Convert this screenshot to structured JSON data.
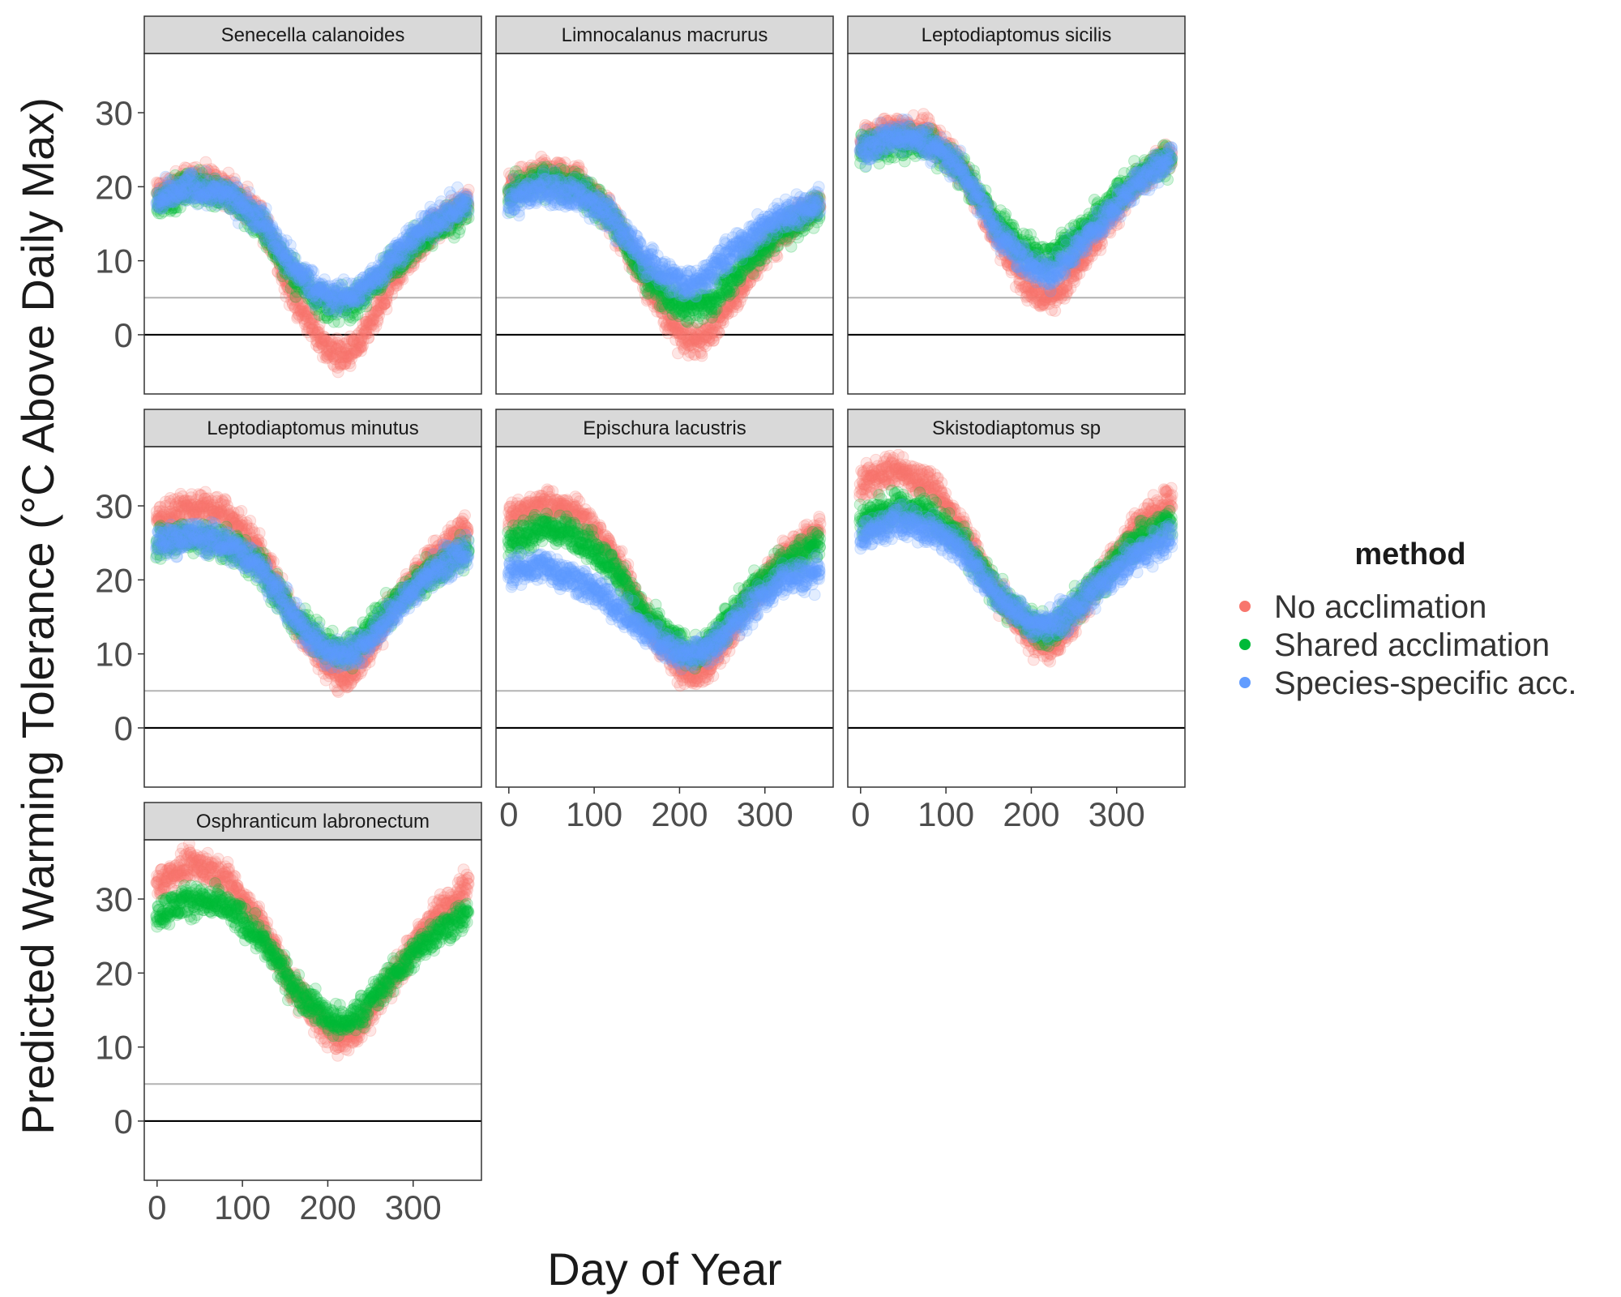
{
  "chart_data": {
    "type": "scatter",
    "xlabel": "Day of Year",
    "ylabel": "Predicted Warming Tolerance (°C Above Daily Max)",
    "xlim": [
      -15,
      380
    ],
    "ylim": [
      -8,
      38
    ],
    "x_ticks": [
      0,
      100,
      200,
      300
    ],
    "y_ticks": [
      0,
      10,
      20,
      30
    ],
    "reference_lines": [
      {
        "y": 0,
        "color": "#000000"
      },
      {
        "y": 5,
        "color": "#b3b3b3"
      }
    ],
    "grid": false,
    "legend": {
      "title": "method",
      "position": "right",
      "entries": [
        {
          "label": "No acclimation",
          "color": "#F8766D"
        },
        {
          "label": "Shared acclimation",
          "color": "#00BA38"
        },
        {
          "label": "Species-specific acc.",
          "color": "#619CFF"
        }
      ]
    },
    "facets": [
      {
        "name": "Senecella calanoides",
        "series": [
          {
            "method": "No acclimation",
            "x": [
              0,
              40,
              80,
              120,
              160,
              200,
              220,
              240,
              280,
              320,
              365
            ],
            "y": [
              19,
              21,
              20,
              16,
              5,
              -2,
              -3,
              -1,
              8,
              14,
              18
            ]
          },
          {
            "method": "Shared acclimation",
            "x": [
              0,
              40,
              80,
              120,
              160,
              200,
              220,
              240,
              280,
              320,
              365
            ],
            "y": [
              18,
              20,
              19,
              15,
              8,
              4,
              4,
              5,
              10,
              14,
              17
            ]
          },
          {
            "method": "Species-specific acc.",
            "x": [
              0,
              40,
              80,
              120,
              160,
              200,
              220,
              240,
              280,
              320,
              365
            ],
            "y": [
              18,
              20,
              19,
              16,
              9,
              5,
              5,
              6,
              11,
              15,
              18
            ]
          }
        ]
      },
      {
        "name": "Limnocalanus macrurus",
        "series": [
          {
            "method": "No acclimation",
            "x": [
              0,
              40,
              80,
              120,
              160,
              200,
              220,
              240,
              280,
              320,
              365
            ],
            "y": [
              20,
              22,
              21,
              16,
              7,
              0,
              -1,
              1,
              8,
              14,
              18
            ]
          },
          {
            "method": "Shared acclimation",
            "x": [
              0,
              40,
              80,
              120,
              160,
              200,
              220,
              240,
              280,
              320,
              365
            ],
            "y": [
              19,
              21,
              20,
              16,
              8,
              4,
              4,
              5,
              10,
              14,
              17
            ]
          },
          {
            "method": "Species-specific acc.",
            "x": [
              0,
              40,
              80,
              120,
              160,
              200,
              220,
              240,
              280,
              320,
              365
            ],
            "y": [
              18,
              20,
              19,
              16,
              10,
              7,
              7,
              9,
              13,
              16,
              18
            ]
          }
        ]
      },
      {
        "name": "Leptodiaptomus sicilis",
        "series": [
          {
            "method": "No acclimation",
            "x": [
              0,
              40,
              80,
              120,
              160,
              200,
              220,
              240,
              280,
              320,
              365
            ],
            "y": [
              26,
              28,
              27,
              22,
              13,
              6,
              5,
              7,
              14,
              20,
              25
            ]
          },
          {
            "method": "Shared acclimation",
            "x": [
              0,
              40,
              80,
              120,
              160,
              200,
              220,
              240,
              280,
              320,
              365
            ],
            "y": [
              25,
              26,
              26,
              22,
              15,
              11,
              10,
              12,
              16,
              21,
              24
            ]
          },
          {
            "method": "Species-specific acc.",
            "x": [
              0,
              40,
              80,
              120,
              160,
              200,
              220,
              240,
              280,
              320,
              365
            ],
            "y": [
              25,
              27,
              26,
              22,
              14,
              9,
              8,
              10,
              15,
              20,
              24
            ]
          }
        ]
      },
      {
        "name": "Leptodiaptomus minutus",
        "series": [
          {
            "method": "No acclimation",
            "x": [
              0,
              40,
              80,
              120,
              160,
              200,
              220,
              240,
              280,
              320,
              365
            ],
            "y": [
              28,
              30,
              29,
              24,
              15,
              8,
              7,
              9,
              17,
              23,
              27
            ]
          },
          {
            "method": "Shared acclimation",
            "x": [
              0,
              40,
              80,
              120,
              160,
              200,
              220,
              240,
              280,
              320,
              365
            ],
            "y": [
              25,
              26,
              25,
              22,
              15,
              11,
              10,
              12,
              17,
              21,
              24
            ]
          },
          {
            "method": "Species-specific acc.",
            "x": [
              0,
              40,
              80,
              120,
              160,
              200,
              220,
              240,
              280,
              320,
              365
            ],
            "y": [
              25,
              26,
              25,
              22,
              15,
              10,
              10,
              11,
              16,
              21,
              24
            ]
          }
        ]
      },
      {
        "name": "Epischura lacustris",
        "series": [
          {
            "method": "No acclimation",
            "x": [
              0,
              40,
              80,
              120,
              160,
              200,
              220,
              240,
              280,
              320,
              365
            ],
            "y": [
              28,
              30,
              29,
              24,
              15,
              8,
              7,
              9,
              17,
              23,
              27
            ]
          },
          {
            "method": "Shared acclimation",
            "x": [
              0,
              40,
              80,
              120,
              160,
              200,
              220,
              240,
              280,
              320,
              365
            ],
            "y": [
              25,
              27,
              26,
              22,
              15,
              11,
              10,
              12,
              18,
              22,
              25
            ]
          },
          {
            "method": "Species-specific acc.",
            "x": [
              0,
              40,
              80,
              120,
              160,
              200,
              220,
              240,
              280,
              320,
              365
            ],
            "y": [
              21,
              22,
              20,
              17,
              13,
              10,
              10,
              11,
              16,
              20,
              21
            ]
          }
        ]
      },
      {
        "name": "Skistodiaptomus sp",
        "series": [
          {
            "method": "No acclimation",
            "x": [
              0,
              40,
              80,
              120,
              160,
              200,
              220,
              240,
              280,
              320,
              365
            ],
            "y": [
              33,
              35,
              33,
              27,
              18,
              12,
              11,
              13,
              20,
              27,
              31
            ]
          },
          {
            "method": "Shared acclimation",
            "x": [
              0,
              40,
              80,
              120,
              160,
              200,
              220,
              240,
              280,
              320,
              365
            ],
            "y": [
              28,
              30,
              29,
              25,
              18,
              14,
              13,
              15,
              20,
              25,
              28
            ]
          },
          {
            "method": "Species-specific acc.",
            "x": [
              0,
              40,
              80,
              120,
              160,
              200,
              220,
              240,
              280,
              320,
              365
            ],
            "y": [
              26,
              28,
              27,
              24,
              18,
              14,
              14,
              15,
              19,
              23,
              26
            ]
          }
        ]
      },
      {
        "name": "Osphranticum labronectum",
        "series": [
          {
            "method": "No acclimation",
            "x": [
              0,
              40,
              80,
              120,
              160,
              200,
              220,
              240,
              280,
              320,
              365
            ],
            "y": [
              32,
              35,
              33,
              27,
              18,
              12,
              11,
              13,
              20,
              27,
              32
            ]
          },
          {
            "method": "Shared acclimation",
            "x": [
              0,
              40,
              80,
              120,
              160,
              200,
              220,
              240,
              280,
              320,
              365
            ],
            "y": [
              28,
              30,
              29,
              25,
              18,
              14,
              13,
              15,
              20,
              25,
              28
            ]
          }
        ]
      }
    ]
  },
  "colors": {
    "strip_fill": "#d9d9d9",
    "panel_border": "#333333",
    "zero_line": "#000000",
    "five_line": "#b3b3b3"
  }
}
